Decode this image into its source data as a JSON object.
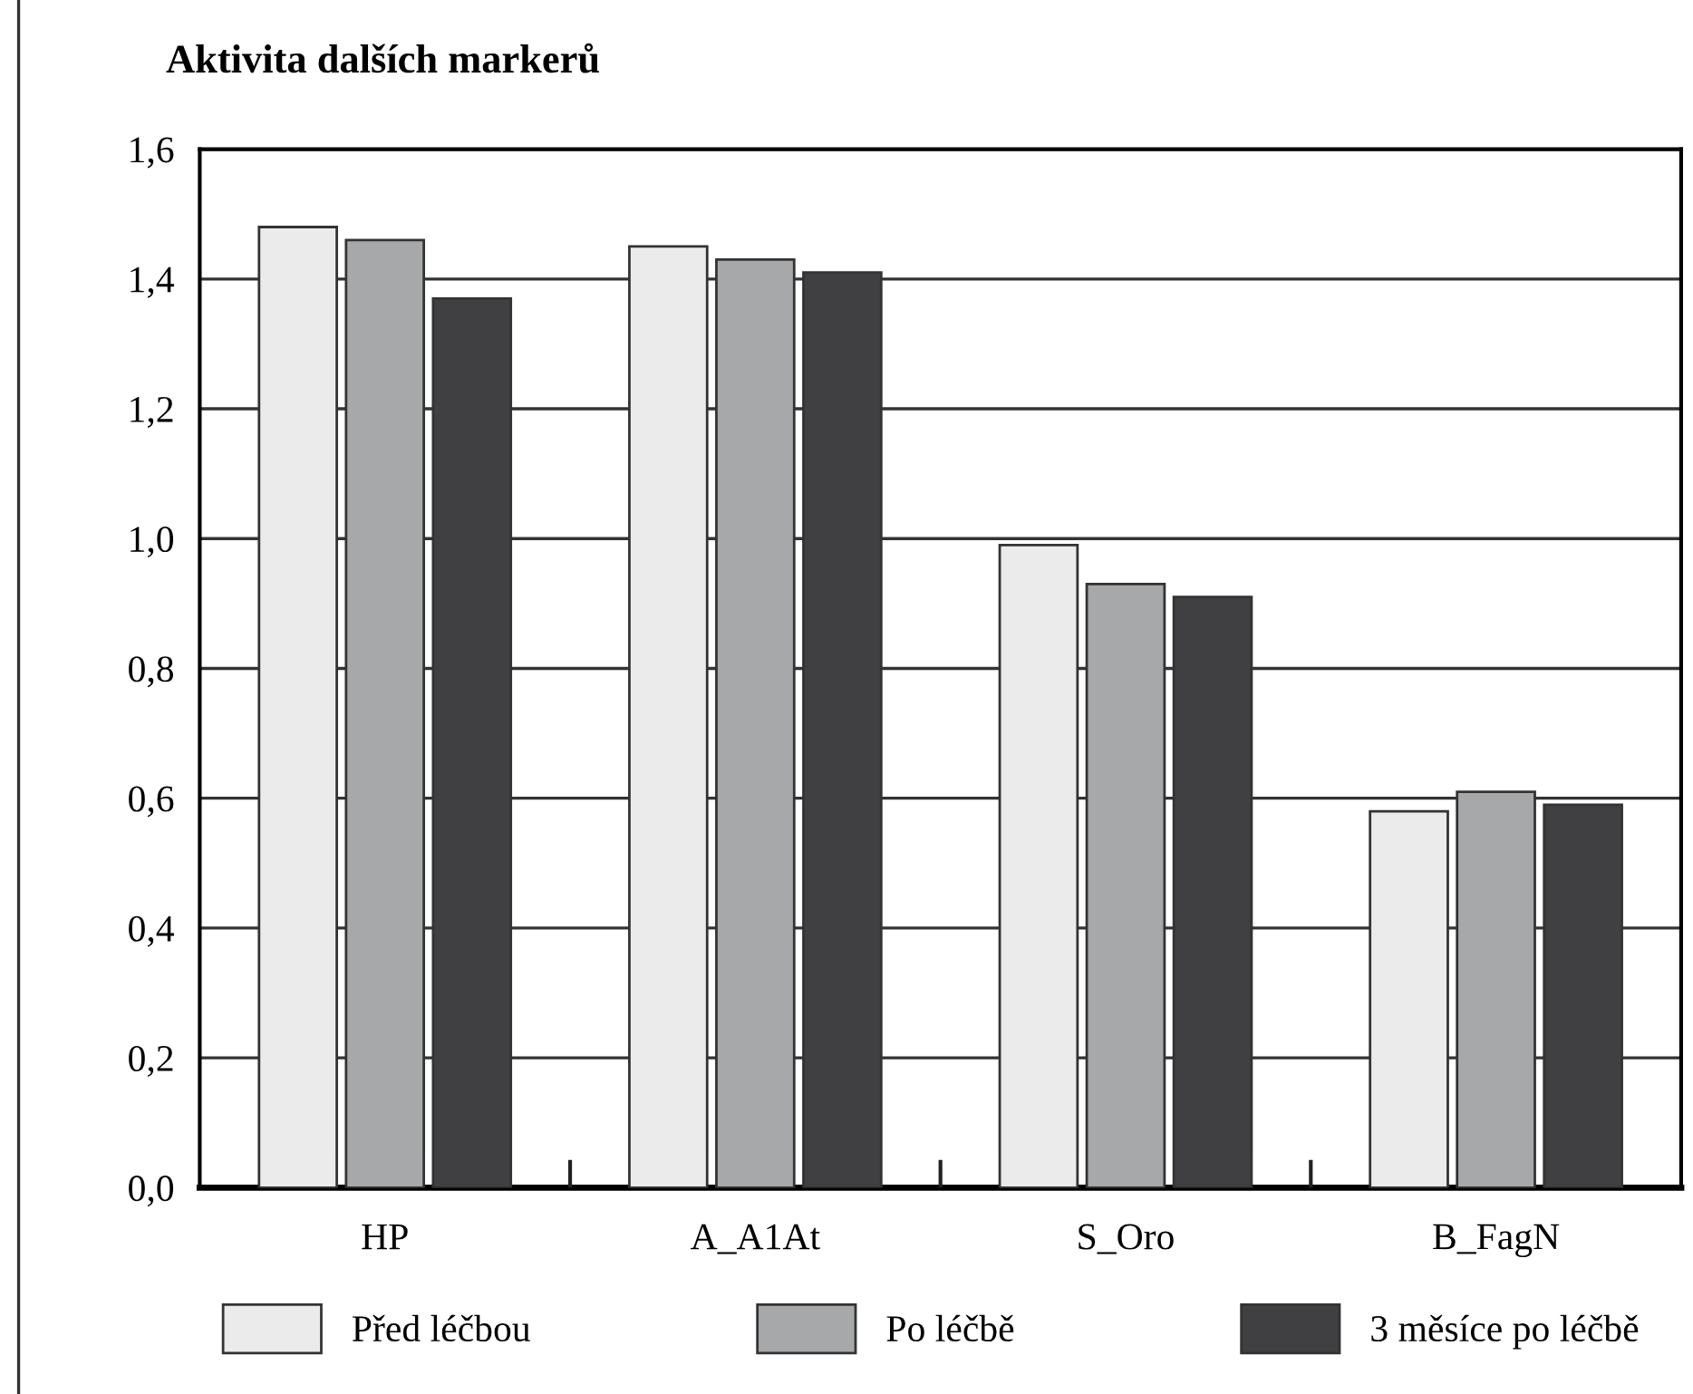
{
  "chart_data": {
    "type": "bar",
    "title": "Aktivita dalších markerů",
    "categories": [
      "HP",
      "A_A1At",
      "S_Oro",
      "B_FagN"
    ],
    "series": [
      {
        "name": "Před léčbou",
        "color": "#ebebeb",
        "values": [
          1.48,
          1.45,
          0.99,
          0.58
        ]
      },
      {
        "name": "Po léčbě",
        "color": "#a7a8aa",
        "values": [
          1.46,
          1.43,
          0.93,
          0.61
        ]
      },
      {
        "name": "3 měsíce po léčbě",
        "color": "#404042",
        "values": [
          1.37,
          1.41,
          0.91,
          0.59
        ]
      }
    ],
    "ylim": [
      0,
      1.6
    ],
    "yticks": [
      {
        "value": 0,
        "label": "0,0"
      },
      {
        "value": 0.2,
        "label": "0,2"
      },
      {
        "value": 0.4,
        "label": "0,4"
      },
      {
        "value": 0.6,
        "label": "0,6"
      },
      {
        "value": 0.8,
        "label": "0,8"
      },
      {
        "value": 1.0,
        "label": "1,0"
      },
      {
        "value": 1.2,
        "label": "1,2"
      },
      {
        "value": 1.4,
        "label": "1,4"
      },
      {
        "value": 1.6,
        "label": "1,6"
      }
    ],
    "grid": "y",
    "legend": "bottom"
  }
}
